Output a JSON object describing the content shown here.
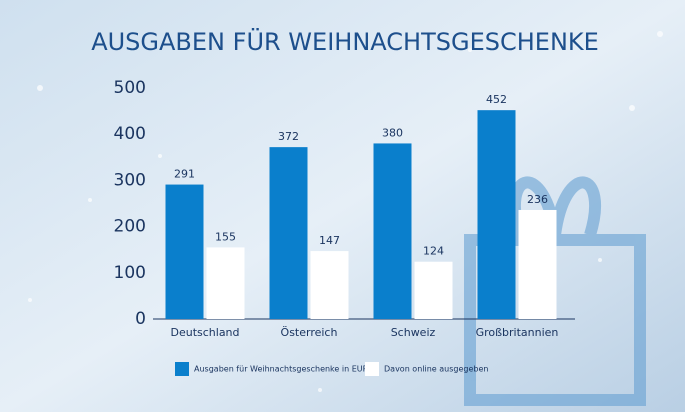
{
  "chart_data": {
    "type": "bar",
    "title": "AUSGABEN FÜR WEIHNACHTSGESCHENKE",
    "categories": [
      "Deutschland",
      "Österreich",
      "Schweiz",
      "Großbritannien"
    ],
    "series": [
      {
        "name": "Ausgaben für Weihnachtsgeschenke in EURO",
        "color": "#0a7fcc",
        "values": [
          291,
          372,
          380,
          452
        ]
      },
      {
        "name": "Davon online ausgegeben",
        "color": "#ffffff",
        "values": [
          155,
          147,
          124,
          236
        ]
      }
    ],
    "ylim": [
      0,
      500
    ],
    "yticks": [
      0,
      100,
      200,
      300,
      400,
      500
    ],
    "grid": false
  }
}
